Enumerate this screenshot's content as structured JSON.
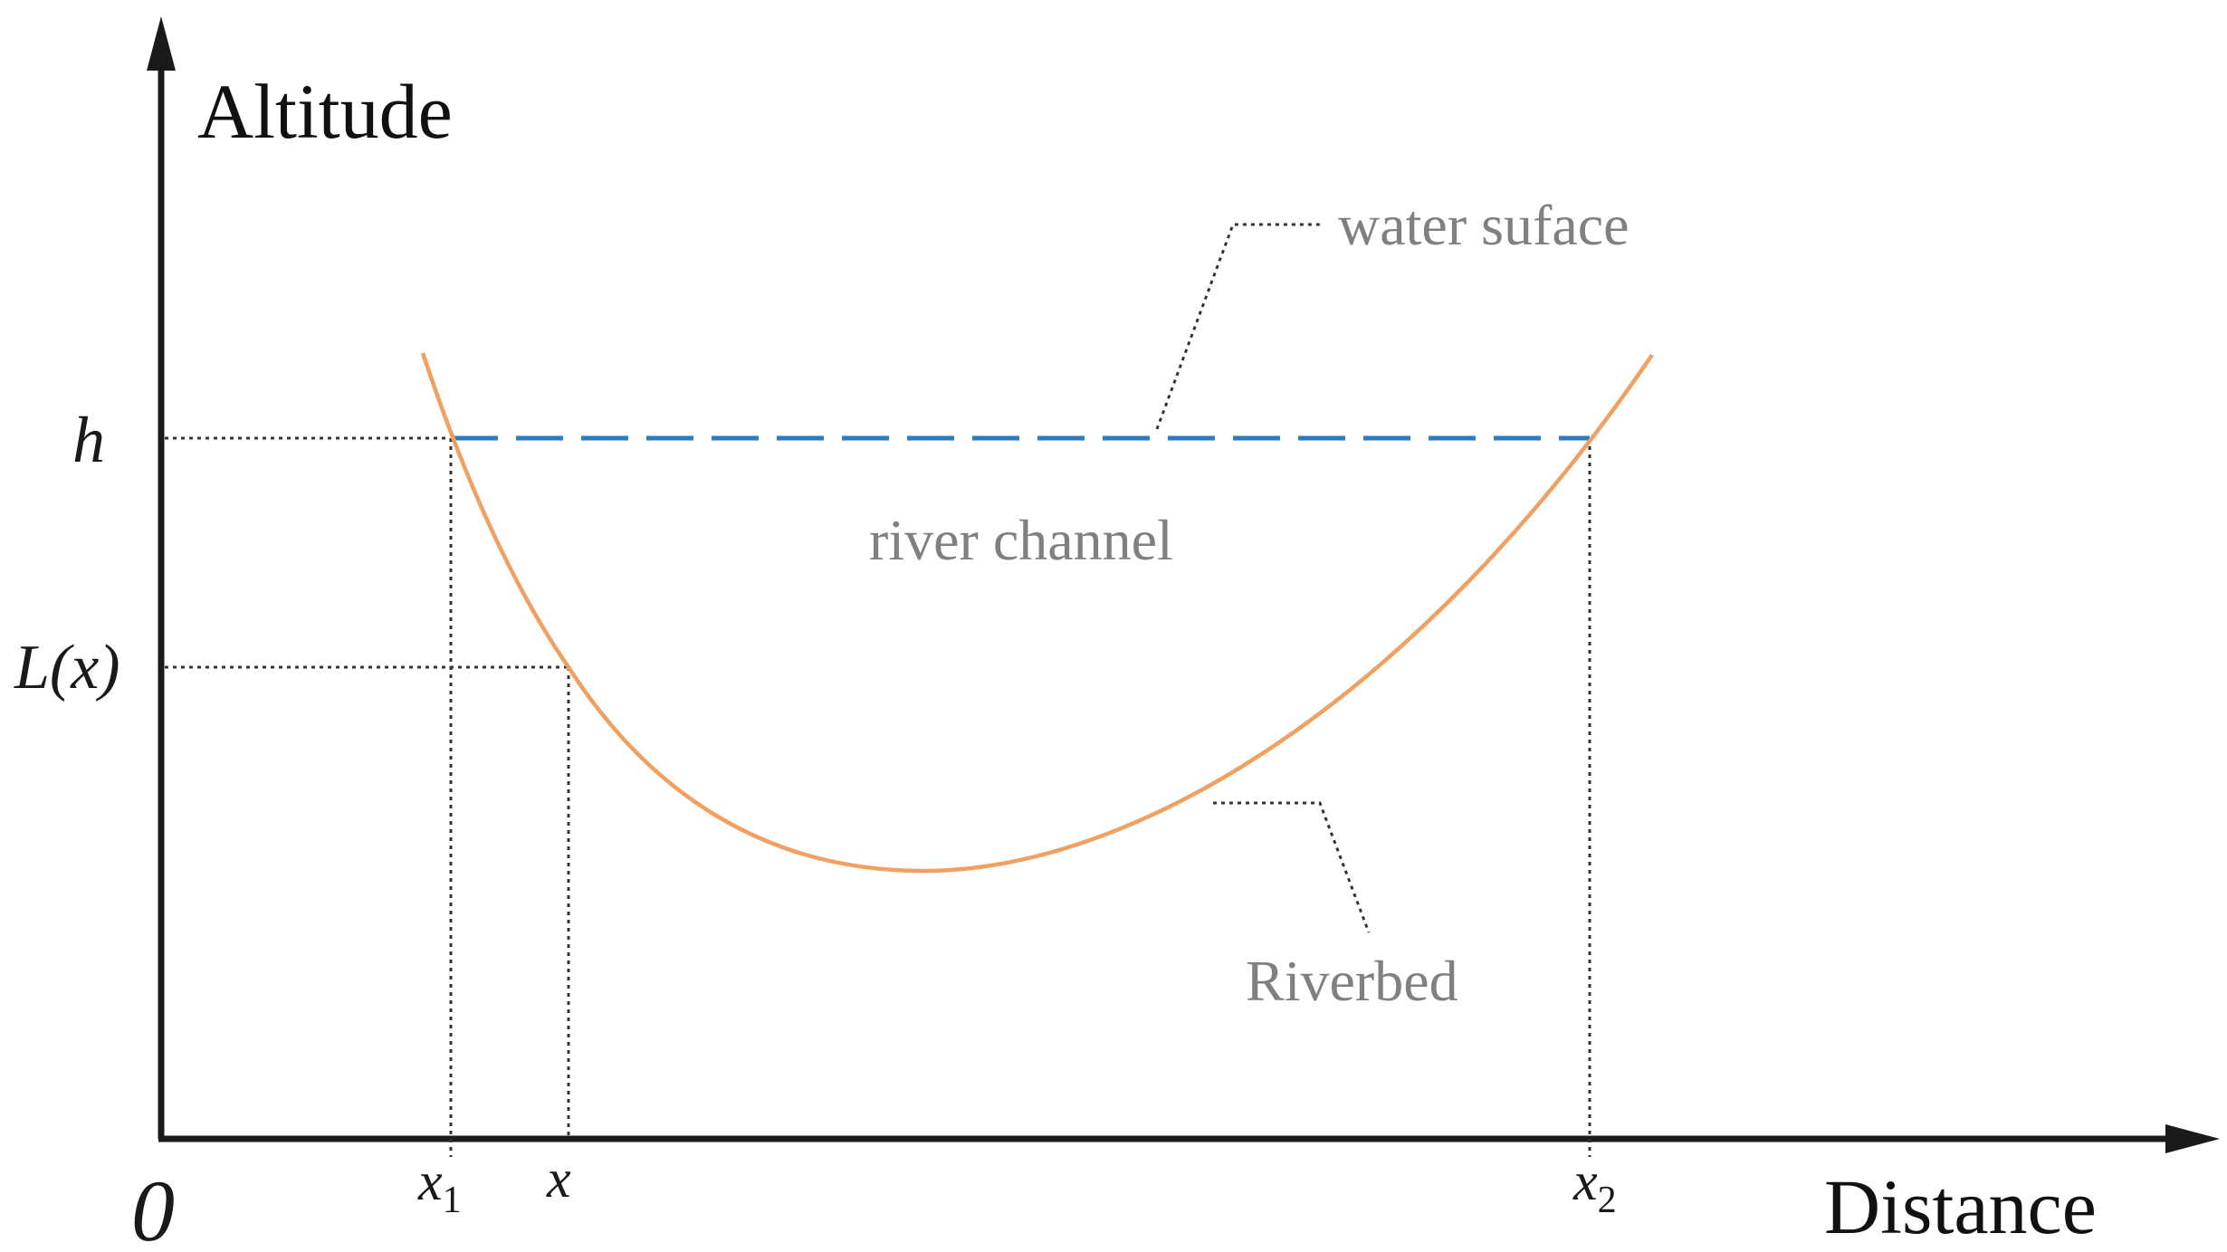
{
  "axes": {
    "y_title": "Altitude",
    "x_title": "Distance",
    "origin_label": "0"
  },
  "y_marks": {
    "h": "h",
    "Lx": "L(x)"
  },
  "x_marks": {
    "x1_base": "x",
    "x1_sub": "1",
    "x": "x",
    "x2_base": "x",
    "x2_sub": "2"
  },
  "callouts": {
    "water_surface": "water suface",
    "river_channel": "river channel",
    "riverbed": "Riverbed"
  },
  "colors": {
    "axis": "#1a1a1a",
    "riverbed_curve": "#f0a060",
    "water_line": "#2e7bbf",
    "guide_lines": "#333333",
    "callout_text": "#808080"
  }
}
